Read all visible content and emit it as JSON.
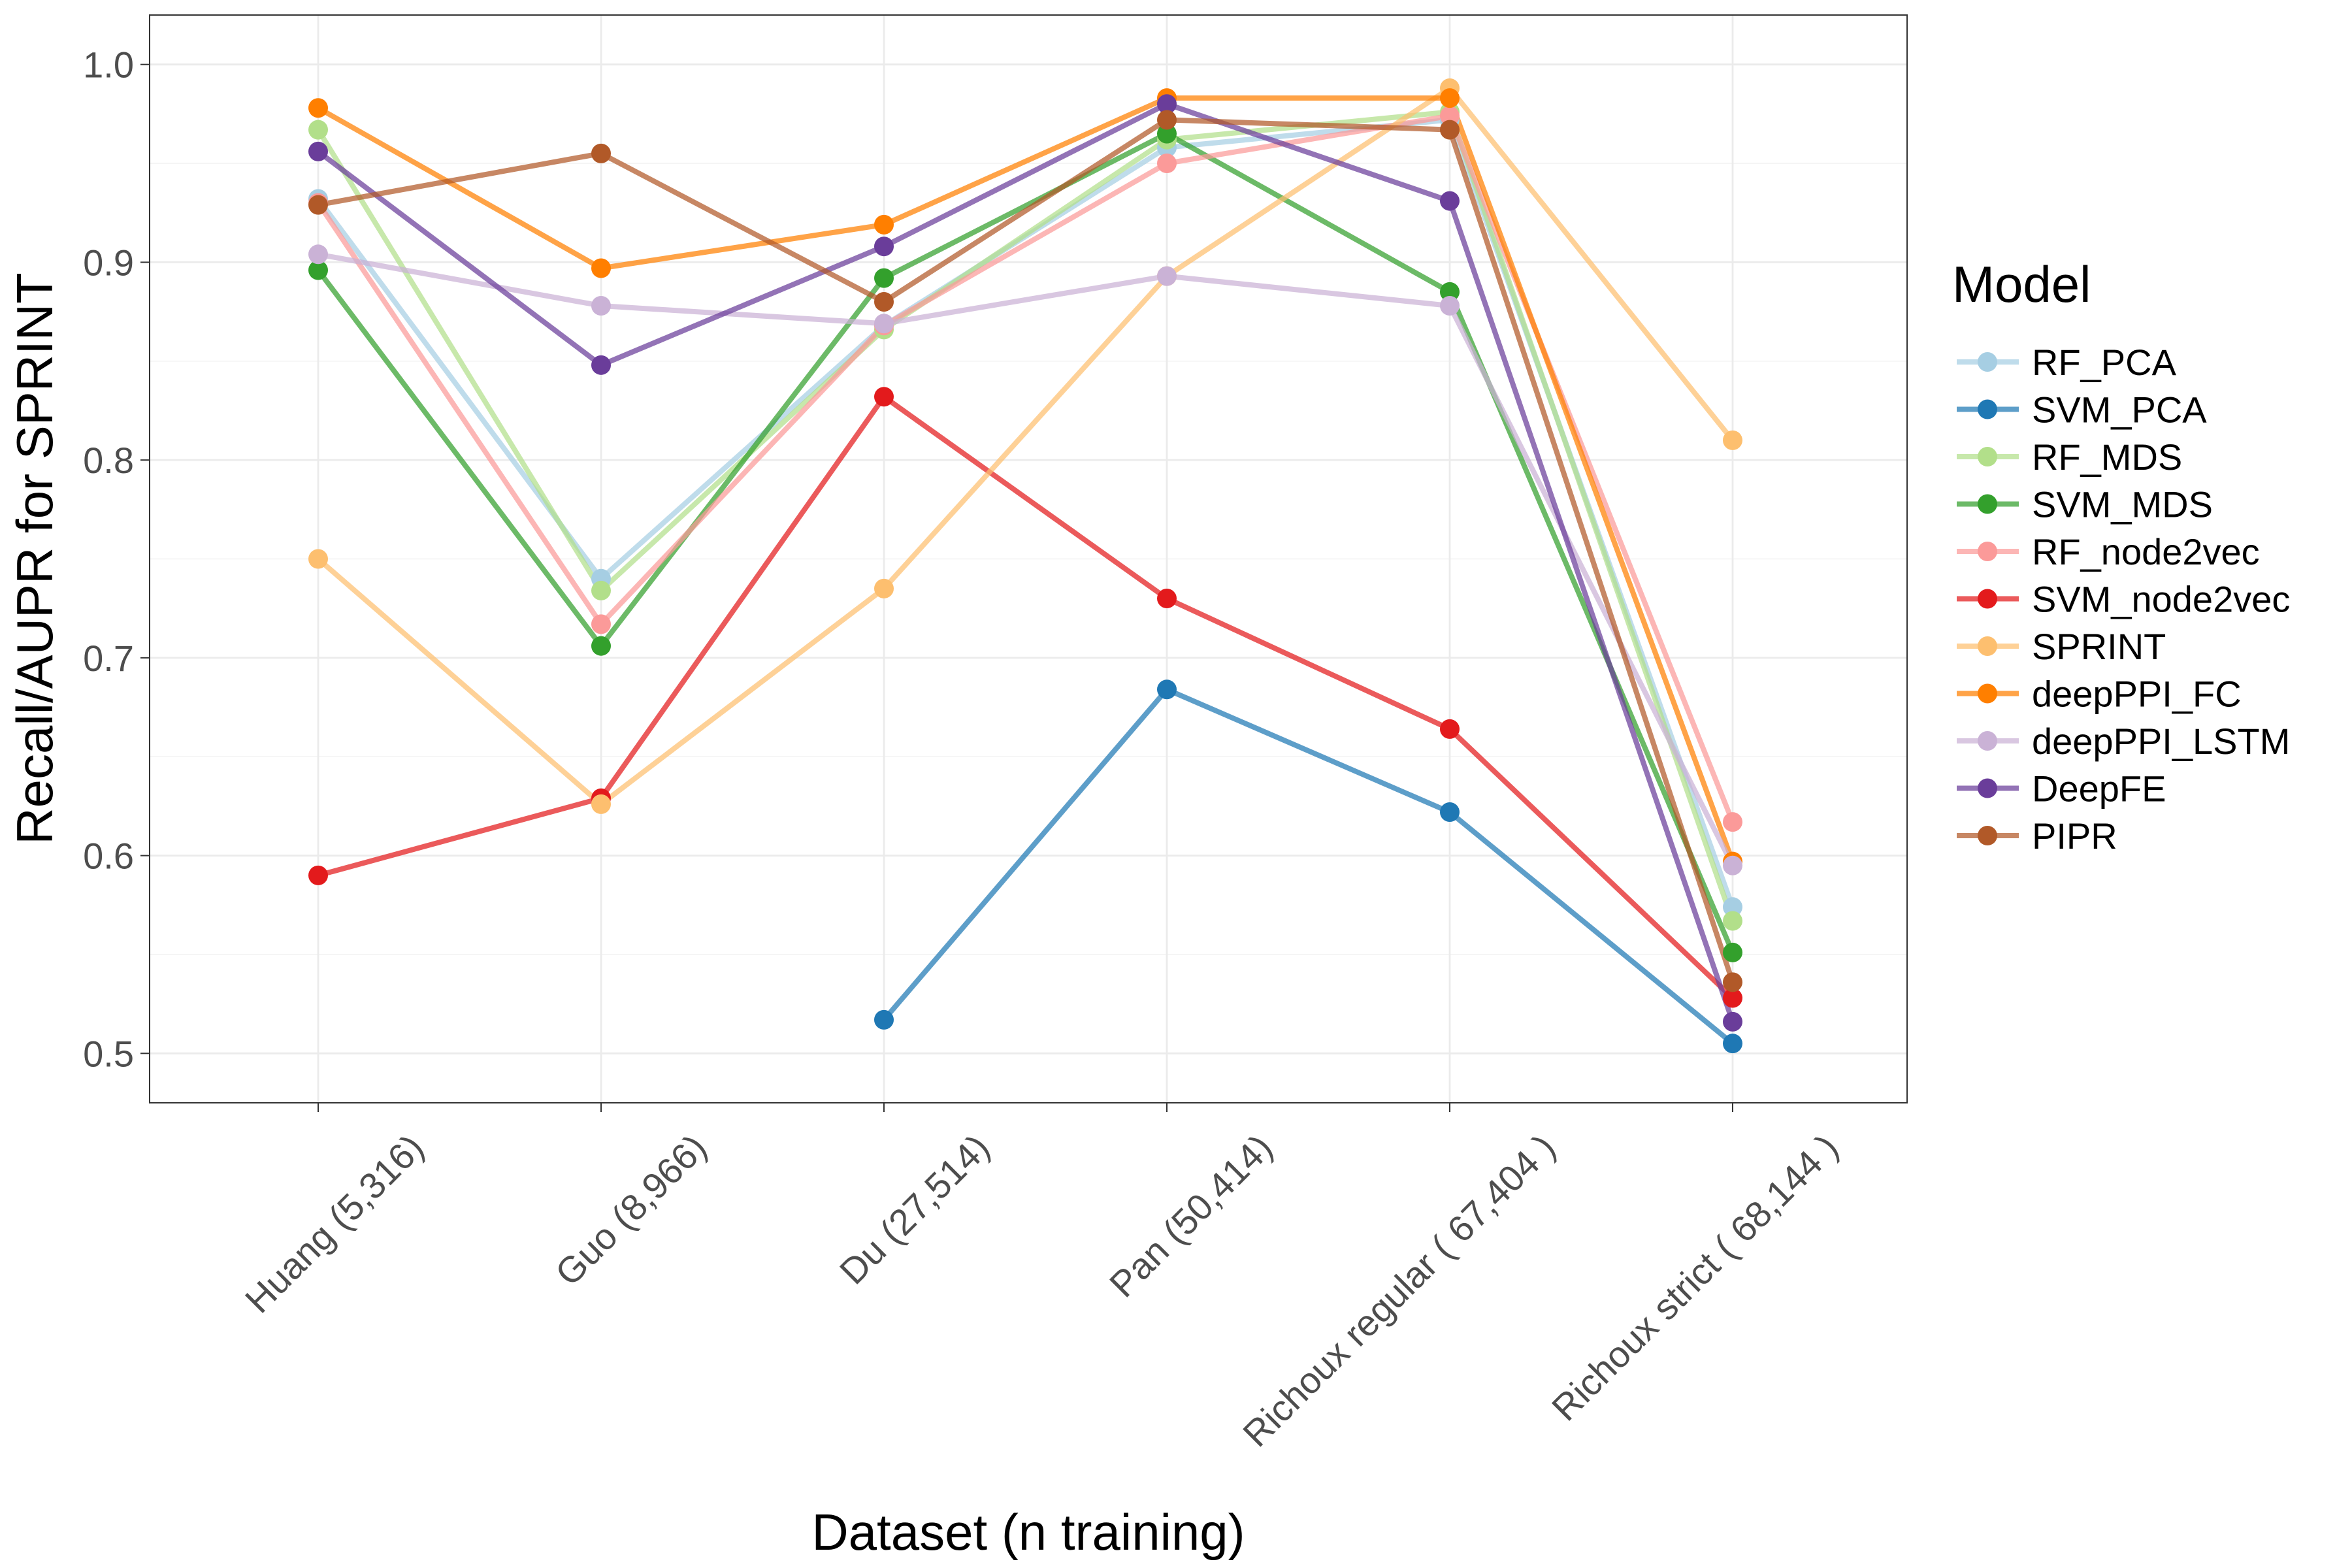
{
  "chart_data": {
    "type": "line",
    "title": "",
    "xlabel": "Dataset (n training)",
    "ylabel": "Recall/AUPR for SPRINT",
    "categories": [
      "Huang (5,316)",
      "Guo (8,966)",
      "Du (27,514)",
      "Pan (50,414)",
      "Richoux regular ( 67,404 )",
      "Richoux strict ( 68,144 )"
    ],
    "yticks": [
      "0.5",
      "0.6",
      "0.7",
      "0.8",
      "0.9",
      "1.0"
    ],
    "ylim": [
      0.475,
      1.025
    ],
    "grid": true,
    "legend": {
      "title": "Model",
      "position": "right"
    },
    "series": [
      {
        "name": "RF_PCA",
        "color": "#A6CEE3",
        "values": [
          0.932,
          0.74,
          0.868,
          0.958,
          0.972,
          0.574
        ]
      },
      {
        "name": "SVM_PCA",
        "color": "#1F78B4",
        "values": [
          null,
          null,
          0.517,
          0.684,
          0.622,
          0.505
        ]
      },
      {
        "name": "RF_MDS",
        "color": "#B2DF8A",
        "values": [
          0.967,
          0.734,
          0.866,
          0.962,
          0.976,
          0.567
        ]
      },
      {
        "name": "SVM_MDS",
        "color": "#33A02C",
        "values": [
          0.896,
          0.706,
          0.892,
          0.965,
          0.885,
          0.551
        ]
      },
      {
        "name": "RF_node2vec",
        "color": "#FB9A99",
        "values": [
          0.93,
          0.717,
          0.868,
          0.95,
          0.974,
          0.617
        ]
      },
      {
        "name": "SVM_node2vec",
        "color": "#E31A1C",
        "values": [
          0.59,
          0.629,
          0.832,
          0.73,
          0.664,
          0.528
        ]
      },
      {
        "name": "SPRINT",
        "color": "#FDBF6F",
        "values": [
          0.75,
          0.626,
          0.735,
          0.893,
          0.988,
          0.81
        ]
      },
      {
        "name": "deepPPI_FC",
        "color": "#FF7F00",
        "values": [
          0.978,
          0.897,
          0.919,
          0.983,
          0.983,
          0.597
        ]
      },
      {
        "name": "deepPPI_LSTM",
        "color": "#CAB2D6",
        "values": [
          0.904,
          0.878,
          0.869,
          0.893,
          0.878,
          0.595
        ]
      },
      {
        "name": "DeepFE",
        "color": "#6A3D9A",
        "values": [
          0.956,
          0.848,
          0.908,
          0.98,
          0.931,
          0.516
        ]
      },
      {
        "name": "PIPR",
        "color": "#B15928",
        "values": [
          0.929,
          0.955,
          0.88,
          0.972,
          0.967,
          0.536
        ]
      }
    ]
  }
}
